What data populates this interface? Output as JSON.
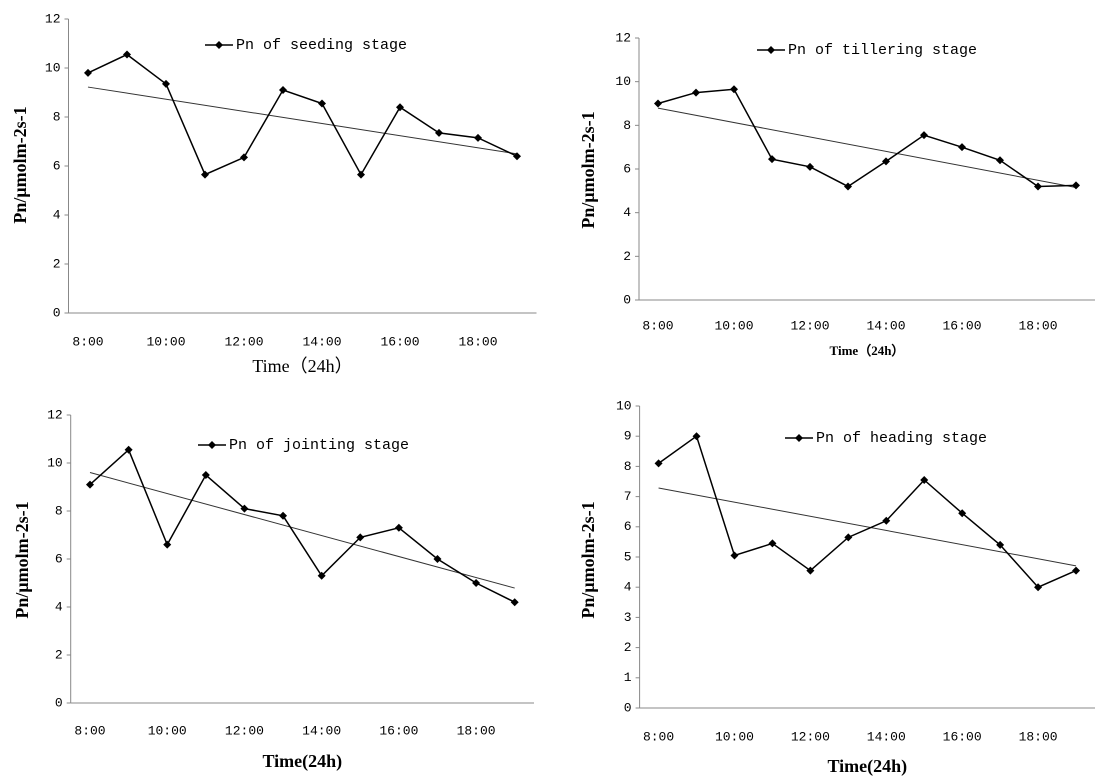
{
  "chart_data": [
    {
      "type": "line",
      "xlabel": "Time（24h）",
      "ylabel": "Pn/μmolm-2s-1",
      "categories": [
        "8:00",
        null,
        "10:00",
        null,
        "12:00",
        null,
        "14:00",
        null,
        "16:00",
        null,
        "18:00",
        null
      ],
      "series": [
        {
          "name": "Pn of seeding stage",
          "color": "#000000",
          "values": [
            9.8,
            10.55,
            9.35,
            5.65,
            6.35,
            9.1,
            8.55,
            5.65,
            8.4,
            7.35,
            7.15,
            6.4
          ]
        }
      ],
      "ylim": [
        0,
        12
      ],
      "yticks": [
        0,
        2,
        4,
        6,
        8,
        10,
        12
      ],
      "trendline": true
    },
    {
      "type": "line",
      "xlabel": "Time（24h）",
      "ylabel": "Pn/μmolm-2s-1",
      "categories": [
        "8:00",
        null,
        "10:00",
        null,
        "12:00",
        null,
        "14:00",
        null,
        "16:00",
        null,
        "18:00",
        null
      ],
      "series": [
        {
          "name": "Pn of tillering stage",
          "color": "#000000",
          "values": [
            9.0,
            9.5,
            9.65,
            6.45,
            6.1,
            5.2,
            6.35,
            7.55,
            7.0,
            6.4,
            5.2,
            5.25
          ]
        }
      ],
      "ylim": [
        0,
        12
      ],
      "yticks": [
        0,
        2,
        4,
        6,
        8,
        10,
        12
      ],
      "trendline": true
    },
    {
      "type": "line",
      "xlabel": "Time(24h)",
      "ylabel": "Pn/μmolm-2s-1",
      "categories": [
        "8:00",
        null,
        "10:00",
        null,
        "12:00",
        null,
        "14:00",
        null,
        "16:00",
        null,
        "18:00",
        null
      ],
      "series": [
        {
          "name": "Pn of jointing stage",
          "color": "#000000",
          "values": [
            9.1,
            10.55,
            6.6,
            9.5,
            8.1,
            7.8,
            5.3,
            6.9,
            7.3,
            6.0,
            5.0,
            4.2
          ]
        }
      ],
      "ylim": [
        0,
        12
      ],
      "yticks": [
        0,
        2,
        4,
        6,
        8,
        10,
        12
      ],
      "trendline": true
    },
    {
      "type": "line",
      "xlabel": "Time(24h)",
      "ylabel": "Pn/μmolm-2s-1",
      "categories": [
        "8:00",
        null,
        "10:00",
        null,
        "12:00",
        null,
        "14:00",
        null,
        "16:00",
        null,
        "18:00",
        null
      ],
      "series": [
        {
          "name": "Pn of heading stage",
          "color": "#000000",
          "values": [
            8.1,
            9.0,
            5.05,
            5.45,
            4.55,
            5.65,
            6.2,
            7.55,
            6.45,
            5.4,
            4.0,
            4.55
          ]
        }
      ],
      "ylim": [
        0,
        10
      ],
      "yticks": [
        0,
        1,
        2,
        3,
        4,
        5,
        6,
        7,
        8,
        9,
        10
      ],
      "trendline": true
    }
  ]
}
